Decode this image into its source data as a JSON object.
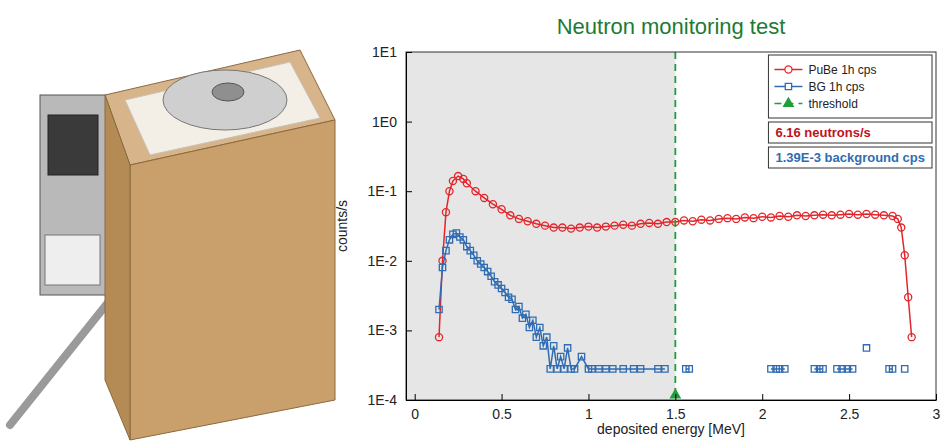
{
  "chart_data": {
    "type": "line",
    "title": "Neutron monitoring test",
    "x_label": "deposited energy [MeV]",
    "y_label": "counts/s",
    "log": "y",
    "legend": "top-right",
    "xlim": [
      -0.05,
      3
    ],
    "xticks": [
      0,
      0.5,
      1,
      1.5,
      2,
      2.5,
      3
    ],
    "ylim": [
      0.0001,
      10
    ],
    "yticks": [
      {
        "value": 0.0001,
        "label": "1E-4"
      },
      {
        "value": 0.001,
        "label": "1E-3"
      },
      {
        "value": 0.01,
        "label": "1E-2"
      },
      {
        "value": 0.1,
        "label": "1E-1"
      },
      {
        "value": 1,
        "label": "1E0"
      },
      {
        "value": 10,
        "label": "1E1"
      }
    ],
    "series": [
      {
        "name": "PuBe 1h cps",
        "color": "#e3262b",
        "marker": "circle",
        "line_style": "solid",
        "x": [
          0.14,
          0.16,
          0.18,
          0.2,
          0.22,
          0.25,
          0.28,
          0.3,
          0.35,
          0.4,
          0.45,
          0.5,
          0.55,
          0.6,
          0.65,
          0.7,
          0.75,
          0.8,
          0.85,
          0.9,
          0.95,
          1.0,
          1.05,
          1.1,
          1.15,
          1.2,
          1.25,
          1.3,
          1.35,
          1.4,
          1.45,
          1.5,
          1.55,
          1.6,
          1.65,
          1.7,
          1.75,
          1.8,
          1.85,
          1.9,
          1.95,
          2.0,
          2.05,
          2.1,
          2.15,
          2.2,
          2.25,
          2.3,
          2.35,
          2.4,
          2.45,
          2.5,
          2.55,
          2.6,
          2.65,
          2.7,
          2.75,
          2.78,
          2.8,
          2.82,
          2.84,
          2.86
        ],
        "values": [
          0.0008,
          0.01,
          0.05,
          0.1,
          0.14,
          0.165,
          0.15,
          0.13,
          0.1,
          0.08,
          0.065,
          0.055,
          0.045,
          0.04,
          0.037,
          0.034,
          0.032,
          0.03,
          0.03,
          0.029,
          0.03,
          0.031,
          0.03,
          0.031,
          0.032,
          0.033,
          0.032,
          0.034,
          0.035,
          0.034,
          0.036,
          0.036,
          0.038,
          0.037,
          0.039,
          0.038,
          0.04,
          0.041,
          0.04,
          0.042,
          0.041,
          0.043,
          0.042,
          0.044,
          0.043,
          0.045,
          0.044,
          0.045,
          0.046,
          0.045,
          0.046,
          0.047,
          0.046,
          0.047,
          0.046,
          0.045,
          0.044,
          0.04,
          0.03,
          0.012,
          0.003,
          0.0008
        ]
      },
      {
        "name": "BG 1h cps",
        "color": "#2f6cb3",
        "marker": "square",
        "line_style": "solid",
        "x": [
          0.14,
          0.16,
          0.18,
          0.2,
          0.22,
          0.24,
          0.26,
          0.28,
          0.3,
          0.32,
          0.34,
          0.36,
          0.38,
          0.4,
          0.42,
          0.44,
          0.46,
          0.48,
          0.5,
          0.52,
          0.54,
          0.56,
          0.58,
          0.6,
          0.62,
          0.64,
          0.66,
          0.68,
          0.7,
          0.72,
          0.74,
          0.76,
          0.78,
          0.8,
          0.82,
          0.84,
          0.86,
          0.88,
          0.9,
          0.92,
          0.96,
          1.0,
          1.02,
          1.06,
          1.1,
          1.14,
          1.2,
          1.26,
          1.3,
          1.4,
          1.44,
          1.5,
          1.56,
          1.58,
          1.8,
          2.05,
          2.08,
          2.1,
          2.13,
          2.2,
          2.3,
          2.33,
          2.35,
          2.4,
          2.43,
          2.46,
          2.49,
          2.52,
          2.56,
          2.6,
          2.66,
          2.73,
          2.75,
          2.78,
          2.82
        ],
        "values": [
          0.002,
          0.008,
          0.014,
          0.02,
          0.024,
          0.025,
          0.022,
          0.02,
          0.016,
          0.014,
          0.012,
          0.01,
          0.009,
          0.008,
          0.007,
          0.006,
          0.005,
          0.0045,
          0.004,
          0.0035,
          0.003,
          0.0028,
          0.002,
          0.0022,
          0.0015,
          0.0017,
          0.0011,
          0.0014,
          0.0008,
          0.0011,
          0.0006,
          0.0008,
          0.00028,
          0.0006,
          0.00028,
          0.00042,
          0.00028,
          0.00056,
          0.00028,
          0.00028,
          0.00042,
          0.00028,
          0.00028,
          0.00028,
          0.00028,
          0.00028,
          0.00028,
          0.00028,
          0.00028,
          0.00028,
          0.00028,
          null,
          0.00028,
          0.00028,
          null,
          0.00028,
          0.00028,
          0.00028,
          0.00028,
          null,
          0.00028,
          0.00028,
          0.00028,
          null,
          0.00028,
          0.00028,
          0.00028,
          0.00028,
          null,
          0.00056,
          null,
          0.00028,
          0.00028,
          null,
          0.00028
        ]
      }
    ],
    "threshold": {
      "name": "threshold",
      "value": 1.5,
      "color": "#1f9e3a",
      "line_style": "dashed",
      "marker": "triangle"
    },
    "annotations": [
      {
        "text": "6.16 neutrons/s",
        "color": "#c0121b"
      },
      {
        "text": "1.39E-3 background cps",
        "color": "#2f6cb3"
      }
    ]
  }
}
